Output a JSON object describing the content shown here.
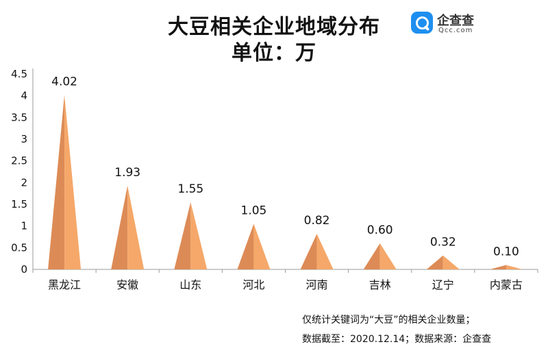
{
  "header": {
    "title_line1": "大豆相关企业地域分布",
    "title_line2": "单位：万"
  },
  "logo": {
    "name": "企查查",
    "domain": "Qcc.com",
    "icon": "magnifier-q-icon",
    "color": "#1e8ff0"
  },
  "chart_data": {
    "type": "bar",
    "shape": "cone",
    "categories": [
      "黑龙江",
      "安徽",
      "山东",
      "河北",
      "河南",
      "吉林",
      "辽宁",
      "内蒙古"
    ],
    "values": [
      4.02,
      1.93,
      1.55,
      1.05,
      0.82,
      0.6,
      0.32,
      0.1
    ],
    "data_labels": [
      "4.02",
      "1.93",
      "1.55",
      "1.05",
      "0.82",
      "0.60",
      "0.32",
      "0.10"
    ],
    "y_ticks": [
      "0",
      "0.5",
      "1",
      "1.5",
      "2",
      "2.5",
      "3",
      "3.5",
      "4",
      "4.5"
    ],
    "ylim": [
      0,
      4.5
    ],
    "grid": false,
    "legend": "none",
    "colors": {
      "light": "#f5a869",
      "dark": "#dd8b56"
    }
  },
  "notes": {
    "line1": "仅统计关键词为“大豆”的相关企业数量；",
    "line2": "数据截至：2020.12.14；数据来源：企查查"
  }
}
